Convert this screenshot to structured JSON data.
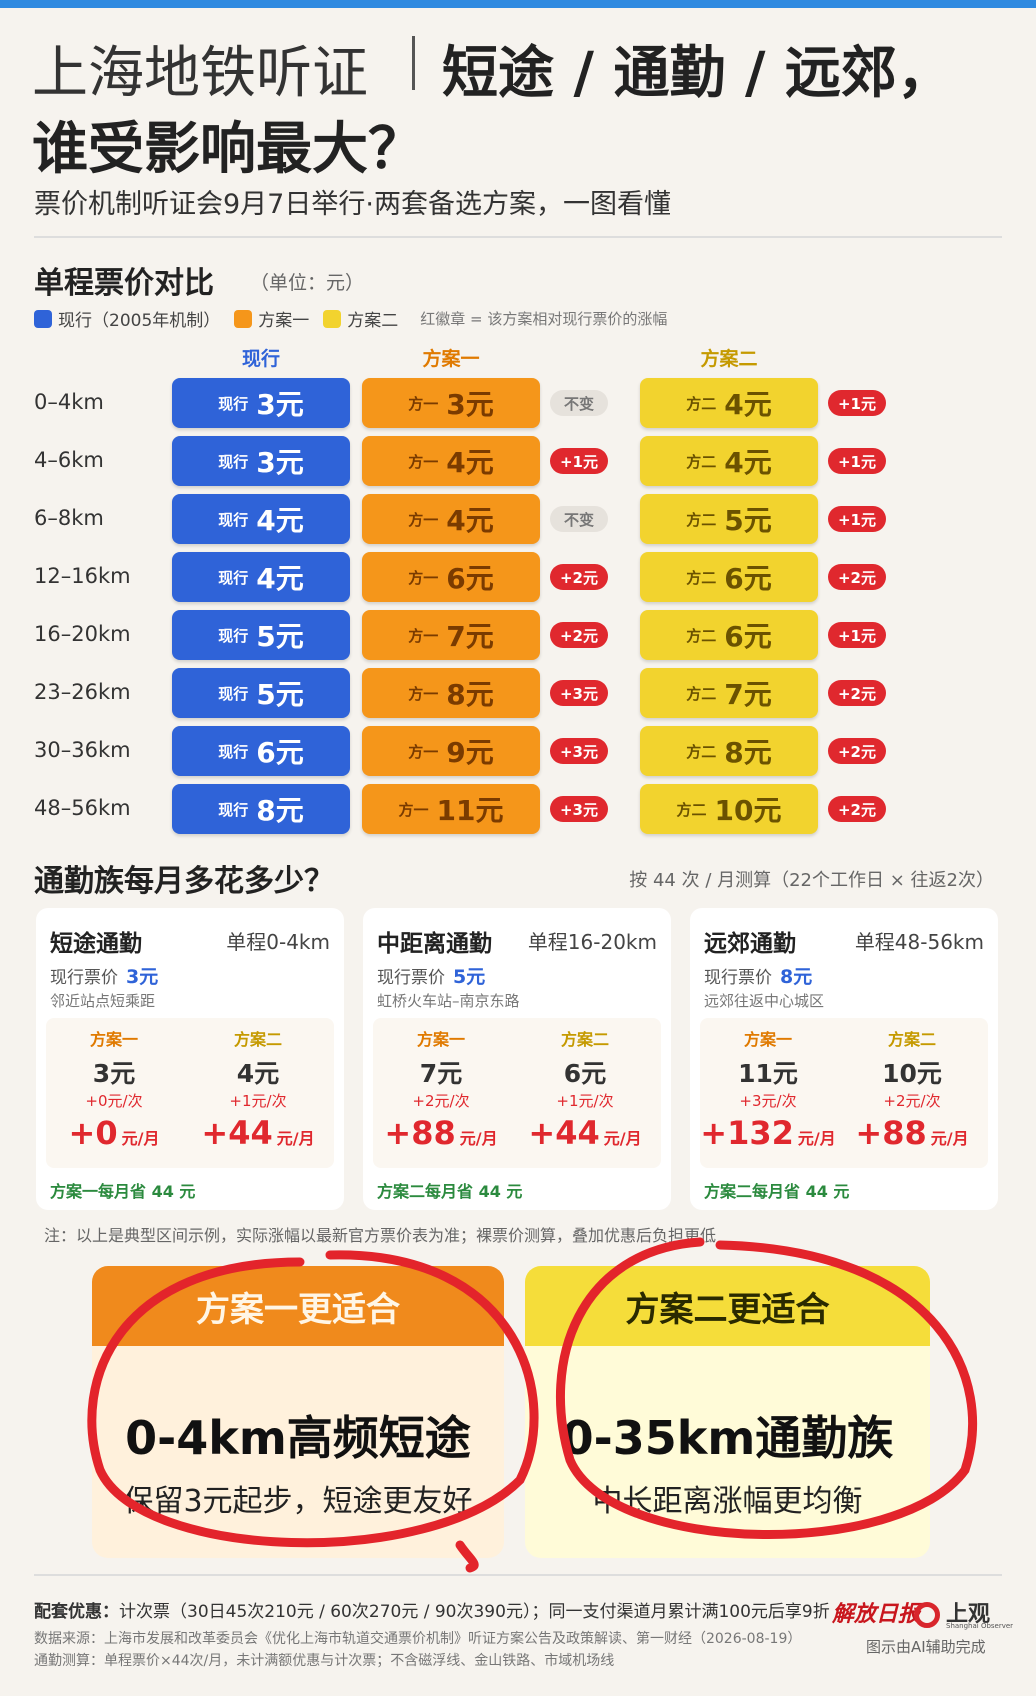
{
  "header": {
    "title_light": "上海地铁听证",
    "title_bold_1": "短途 / 通勤 / 远郊，",
    "title_bold_2": "谁受影响最大？",
    "subtitle": "票价机制听证会9月7日举行·两套备选方案，一图看懂"
  },
  "fare_section": {
    "title": "单程票价对比",
    "unit": "（单位：元）",
    "legend": [
      {
        "label": "现行（2005年机制）",
        "color": "#2f63d8"
      },
      {
        "label": "方案一",
        "color": "#f5961a"
      },
      {
        "label": "方案二",
        "color": "#f2d32e"
      }
    ],
    "legend_note": "红徽章 = 该方案相对现行票价的涨幅",
    "columns": [
      "现行",
      "方案一",
      "方案二"
    ],
    "cell_prefixes": {
      "current": "现行",
      "plan1": "方一",
      "plan2": "方二"
    },
    "rows": [
      {
        "distance": "0–4km",
        "current": "3元",
        "plan1": "3元",
        "plan1_change": "不变",
        "plan2": "4元",
        "plan2_change": "+1元"
      },
      {
        "distance": "4–6km",
        "current": "3元",
        "plan1": "4元",
        "plan1_change": "+1元",
        "plan2": "4元",
        "plan2_change": "+1元"
      },
      {
        "distance": "6–8km",
        "current": "4元",
        "plan1": "4元",
        "plan1_change": "不变",
        "plan2": "5元",
        "plan2_change": "+1元"
      },
      {
        "distance": "12–16km",
        "current": "4元",
        "plan1": "6元",
        "plan1_change": "+2元",
        "plan2": "6元",
        "plan2_change": "+2元"
      },
      {
        "distance": "16–20km",
        "current": "5元",
        "plan1": "7元",
        "plan1_change": "+2元",
        "plan2": "6元",
        "plan2_change": "+1元"
      },
      {
        "distance": "23–26km",
        "current": "5元",
        "plan1": "8元",
        "plan1_change": "+3元",
        "plan2": "7元",
        "plan2_change": "+2元"
      },
      {
        "distance": "30–36km",
        "current": "6元",
        "plan1": "9元",
        "plan1_change": "+3元",
        "plan2": "8元",
        "plan2_change": "+2元"
      },
      {
        "distance": "48–56km",
        "current": "8元",
        "plan1": "11元",
        "plan1_change": "+3元",
        "plan2": "10元",
        "plan2_change": "+2元"
      }
    ]
  },
  "commute_section": {
    "title": "通勤族每月多花多少？",
    "note": "按 44 次 / 月测算（22个工作日 × 往返2次）",
    "cards": [
      {
        "name": "短途通勤",
        "range": "单程0-4km",
        "current_label": "现行票价",
        "current_price": "3元",
        "desc": "邻近站点短乘距",
        "plans": [
          {
            "name": "方案一",
            "fare": "3元",
            "per_trip": "+0元/次",
            "monthly": "+0",
            "unit": "元/月"
          },
          {
            "name": "方案二",
            "fare": "4元",
            "per_trip": "+1元/次",
            "monthly": "+44",
            "unit": "元/月"
          }
        ],
        "footer": "方案一每月省 44 元"
      },
      {
        "name": "中距离通勤",
        "range": "单程16-20km",
        "current_label": "现行票价",
        "current_price": "5元",
        "desc": "虹桥火车站–南京东路",
        "plans": [
          {
            "name": "方案一",
            "fare": "7元",
            "per_trip": "+2元/次",
            "monthly": "+88",
            "unit": "元/月"
          },
          {
            "name": "方案二",
            "fare": "6元",
            "per_trip": "+1元/次",
            "monthly": "+44",
            "unit": "元/月"
          }
        ],
        "footer": "方案二每月省 44 元"
      },
      {
        "name": "远郊通勤",
        "range": "单程48-56km",
        "current_label": "现行票价",
        "current_price": "8元",
        "desc": "远郊往返中心城区",
        "plans": [
          {
            "name": "方案一",
            "fare": "11元",
            "per_trip": "+3元/次",
            "monthly": "+132",
            "unit": "元/月"
          },
          {
            "name": "方案二",
            "fare": "10元",
            "per_trip": "+2元/次",
            "monthly": "+88",
            "unit": "元/月"
          }
        ],
        "footer": "方案二每月省 44 元"
      }
    ],
    "footnote": "注：以上是典型区间示例，实际涨幅以最新官方票价表为准；裸票价测算，叠加优惠后负担更低"
  },
  "recommendations": [
    {
      "heading": "方案一更适合",
      "main": "0-4km高频短途",
      "sub": "保留3元起步，短途更友好"
    },
    {
      "heading": "方案二更适合",
      "main": "0-35km通勤族",
      "sub": "中长距离涨幅更均衡"
    }
  ],
  "footer": {
    "discount_label": "配套优惠：",
    "discount_text": "计次票（30日45次210元 / 60次270元 / 90次390元）；同一支付渠道月累计满100元后享9折",
    "source": "数据来源：上海市发展和改革委员会《优化上海市轨道交通票价机制》听证方案公告及政策解读、第一财经（2026-08-19）",
    "calc": "通勤测算：单程票价×44次/月，未计满额优惠与计次票；不含磁浮线、金山铁路、市域机场线",
    "logo_1": "解放日报",
    "logo_2": "上观",
    "logo_2_en": "Shanghai Observer",
    "credit": "图示由AI辅助完成"
  }
}
